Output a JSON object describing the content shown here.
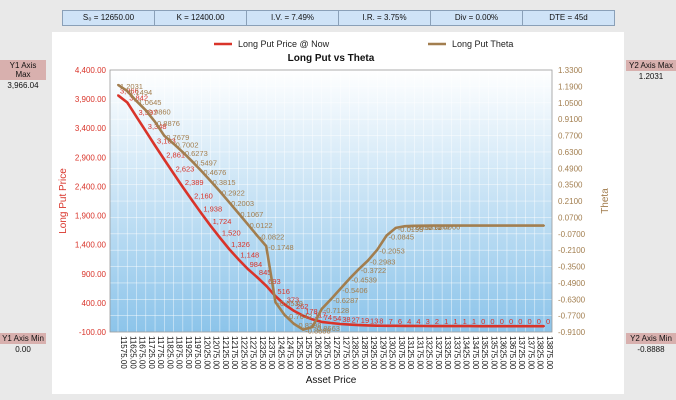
{
  "params": [
    {
      "label": "S₀ = 12650.00"
    },
    {
      "label": "K = 12400.00"
    },
    {
      "label": "I.V. = 7.49%"
    },
    {
      "label": "I.R. = 3.75%"
    },
    {
      "label": "Div = 0.00%"
    },
    {
      "label": "DTE = 45d"
    }
  ],
  "side": {
    "y1_max_label": "Y1 Axis Max",
    "y1_max_value": "3,966.04",
    "y1_min_label": "Y1 Axis Min",
    "y1_min_value": "0.00",
    "y2_max_label": "Y2 Axis Max",
    "y2_max_value": "1.2031",
    "y2_min_label": "Y2 Axis Min",
    "y2_min_value": "-0.8888"
  },
  "colors": {
    "price": "#d9342a",
    "theta": "#a27e4f",
    "axis_left": "#d9342a",
    "axis_right": "#a27e4f"
  },
  "chart_data": {
    "type": "line",
    "title": "Long Put vs Theta",
    "xlabel": "Asset Price",
    "ylabel": "Long Put Price",
    "y2label": "Theta",
    "ylim": [
      -100,
      4400
    ],
    "y2lim": [
      -0.909,
      1.33
    ],
    "yticks": [
      -100,
      400,
      900,
      1400,
      1900,
      2400,
      2900,
      3400,
      3900,
      4400
    ],
    "yticklabels": [
      "-100.00",
      "400.00",
      "900.00",
      "1,400.00",
      "1,900.00",
      "2,400.00",
      "2,900.00",
      "3,400.00",
      "3,900.00",
      "4,400.00"
    ],
    "y2ticks": [
      -0.909,
      -0.77,
      -0.63,
      -0.49,
      -0.35,
      -0.21,
      -0.07,
      0.07,
      0.21,
      0.35,
      0.49,
      0.63,
      0.77,
      0.91,
      1.05,
      1.19,
      1.33
    ],
    "y2ticklabels": [
      "-0.9100",
      "-0.7700",
      "-0.6300",
      "-0.4900",
      "-0.3500",
      "-0.2100",
      "-0.0700",
      "0.0700",
      "0.2100",
      "0.3500",
      "0.4900",
      "0.6300",
      "0.7700",
      "0.9100",
      "1.0500",
      "1.1900",
      "1.3300"
    ],
    "x": [
      11575,
      11625,
      11675,
      11725,
      11775,
      11825,
      11875,
      11925,
      11975,
      12025,
      12075,
      12125,
      12175,
      12225,
      12275,
      12325,
      12375,
      12425,
      12475,
      12525,
      12575,
      12625,
      12675,
      12725,
      12775,
      12825,
      12875,
      12925,
      12975,
      13025,
      13075,
      13125,
      13175,
      13225,
      13275,
      13325,
      13375,
      13425,
      13475,
      13525,
      13575,
      13625,
      13675,
      13725,
      13775,
      13825,
      13875
    ],
    "xticklabels": [
      "11575.00",
      "11625.00",
      "11675.00",
      "11725.00",
      "11775.00",
      "11825.00",
      "11875.00",
      "11925.00",
      "11975.00",
      "12025.00",
      "12075.00",
      "12125.00",
      "12175.00",
      "12225.00",
      "12275.00",
      "12325.00",
      "12375.00",
      "12425.00",
      "12475.00",
      "12525.00",
      "12575.00",
      "12625.00",
      "12675.00",
      "12725.00",
      "12775.00",
      "12825.00",
      "12875.00",
      "12925.00",
      "12975.00",
      "13025.00",
      "13075.00",
      "13125.00",
      "13175.00",
      "13225.00",
      "13275.00",
      "13325.00",
      "13375.00",
      "13425.00",
      "13475.00",
      "13525.00",
      "13575.00",
      "13625.00",
      "13675.00",
      "13725.00",
      "13775.00",
      "13825.00",
      "13875.00"
    ],
    "legend": "top",
    "series": [
      {
        "name": "Long Put Price @ Now",
        "axis": "y1",
        "values": [
          3966,
          3842,
          3597,
          3348,
          3103,
          2861,
          2623,
          2389,
          2160,
          1938,
          1724,
          1520,
          1326,
          1148,
          984,
          845,
          693,
          516,
          373,
          262,
          178,
          117,
          74,
          54,
          38,
          27,
          19,
          13,
          8,
          7,
          6,
          4,
          4,
          3,
          2,
          1,
          1,
          1,
          1,
          0,
          0,
          0,
          0,
          0,
          0,
          0,
          0
        ],
        "labels": [
          "3,966",
          "3,842",
          "3,597",
          "3,348",
          "3,103",
          "2,861",
          "2,623",
          "2,389",
          "2,160",
          "1,938",
          "1,724",
          "1,520",
          "1,326",
          "1,148",
          "984",
          "845",
          "693",
          "516",
          "373",
          "262",
          "178",
          "117",
          "74",
          "54",
          "38",
          "27",
          "19",
          "13",
          "8",
          "7",
          "6",
          "4",
          "4",
          "3",
          "2",
          "1",
          "1",
          "1",
          "1",
          "0",
          "0",
          "0",
          "0",
          "0",
          "0",
          "0",
          "0"
        ]
      },
      {
        "name": "Long Put Theta",
        "axis": "y2",
        "values": [
          1.2031,
          1.1494,
          1.0645,
          0.986,
          0.8876,
          0.7679,
          0.7002,
          0.6273,
          0.5497,
          0.4676,
          0.3815,
          0.2922,
          0.2003,
          0.1067,
          0.0122,
          -0.0822,
          -0.1748,
          -0.6539,
          -0.7642,
          -0.8398,
          -0.8888,
          -0.8663,
          -0.7128,
          -0.6287,
          -0.5406,
          -0.4539,
          -0.3722,
          -0.2983,
          -0.2053,
          -0.0845,
          -0.0193,
          -0.0052,
          -0.0012,
          -0.0002,
          -0.0,
          -0.0,
          -0.0,
          -0.0,
          -0.0,
          -0.0,
          -0.0,
          -0.0,
          -0.0,
          -0.0,
          -0.0,
          -0.0,
          -0.0
        ],
        "labels": [
          "1.2031",
          "1.1494",
          "1.0645",
          "0.9860",
          "0.8876",
          "0.7679",
          "0.7002",
          "0.6273",
          "0.5497",
          "0.4676",
          "0.3815",
          "0.2922",
          "0.2003",
          "0.1067",
          "0.0122",
          "-0.0822",
          "-0.1748",
          "-0.6539",
          "-0.7642",
          "-0.8398",
          "-0.8888",
          "-0.8663",
          "-0.7128",
          "-0.6287",
          "-0.5406",
          "-0.4539",
          "-0.3722",
          "-0.2983",
          "-0.2053",
          "-0.0845",
          "-0.0193",
          "-0.0052",
          "-0.0012",
          "-0.0002",
          "-0.0000",
          "",
          "",
          "",
          "",
          "",
          "",
          "",
          "",
          "",
          "",
          "",
          ""
        ]
      }
    ]
  }
}
